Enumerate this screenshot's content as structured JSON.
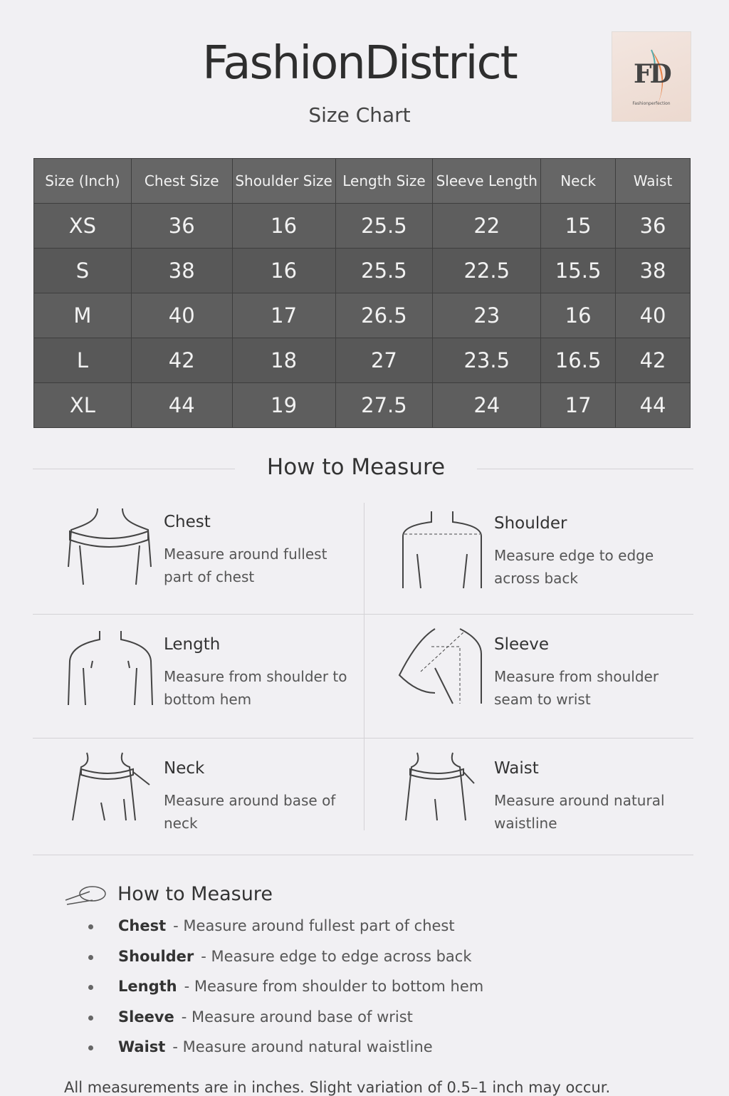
{
  "header": {
    "brand": "FashionDistrict",
    "subtitle": "Size Chart",
    "logo": {
      "letters": "FD",
      "tagline": "Fashionperfection"
    }
  },
  "table": {
    "columns": [
      "Size (Inch)",
      "Chest Size",
      "Shoulder Size",
      "Length Size",
      "Sleeve Length",
      "Neck",
      "Waist"
    ],
    "rows": [
      [
        "XS",
        "36",
        "16",
        "25.5",
        "22",
        "15",
        "36"
      ],
      [
        "S",
        "38",
        "16",
        "25.5",
        "22.5",
        "15.5",
        "38"
      ],
      [
        "M",
        "40",
        "17",
        "26.5",
        "23",
        "16",
        "40"
      ],
      [
        "L",
        "42",
        "18",
        "27",
        "23.5",
        "16.5",
        "42"
      ],
      [
        "XL",
        "44",
        "19",
        "27.5",
        "24",
        "17",
        "44"
      ]
    ]
  },
  "measure": {
    "title": "How to Measure",
    "cards": [
      {
        "title": "Chest",
        "desc": "Measure around fullest part of chest",
        "icon": "chest-icon"
      },
      {
        "title": "Shoulder",
        "desc": "Measure edge to edge across back",
        "icon": "shoulder-icon"
      },
      {
        "title": "Length",
        "desc": "Measure from shoulder to bottom hem",
        "icon": "length-icon"
      },
      {
        "title": "Sleeve",
        "desc": "Measure from shoulder seam to wrist",
        "icon": "sleeve-icon"
      },
      {
        "title": "Neck",
        "desc": "Measure around base of neck",
        "icon": "neck-icon"
      },
      {
        "title": "Waist",
        "desc": "Measure around natural waistline",
        "icon": "waist-icon"
      }
    ]
  },
  "list": {
    "title": "How to Measure",
    "icon": "measuring-tape-icon",
    "items": [
      {
        "term": "Chest",
        "desc": "- Measure around fullest part of chest"
      },
      {
        "term": "Shoulder",
        "desc": "- Measure edge to edge across back"
      },
      {
        "term": "Length",
        "desc": "- Measure from shoulder to bottom hem"
      },
      {
        "term": "Sleeve",
        "desc": "- Measure around base of wrist"
      },
      {
        "term": "Waist",
        "desc": "- Measure around natural waistline"
      }
    ]
  },
  "note": "All measurements are in inches. Slight variation of 0.5–1 inch may occur."
}
